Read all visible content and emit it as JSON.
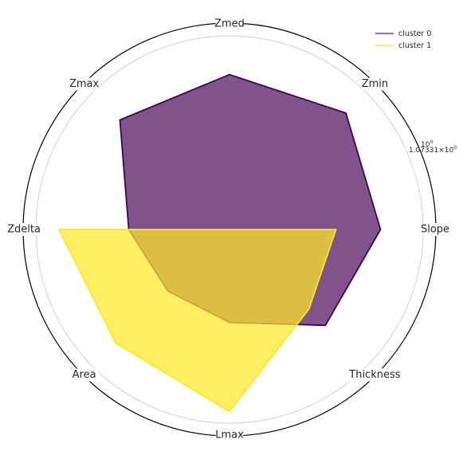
{
  "chart_data": {
    "type": "radar",
    "axes": [
      "Zmed",
      "Zmin",
      "Slope",
      "Thickness",
      "Lmax",
      "Area",
      "Zdelta",
      "Zmax"
    ],
    "radial_scale": "log",
    "r_tick_labels": [
      "10^0",
      "1.07331×10^0"
    ],
    "grid": true,
    "legend_position": "top-right",
    "series": [
      {
        "name": "cluster 0",
        "color": "#440154",
        "fill": "#440154",
        "fill_opacity": 0.68,
        "values": [
          0.8,
          0.85,
          0.78,
          0.7,
          0.48,
          0.45,
          0.52,
          0.8
        ]
      },
      {
        "name": "cluster 1",
        "color": "#fde725",
        "fill": "#fde725",
        "fill_opacity": 0.72,
        "values": [
          0.0,
          0.0,
          0.55,
          0.58,
          0.94,
          0.83,
          0.88,
          0.0
        ]
      }
    ]
  }
}
